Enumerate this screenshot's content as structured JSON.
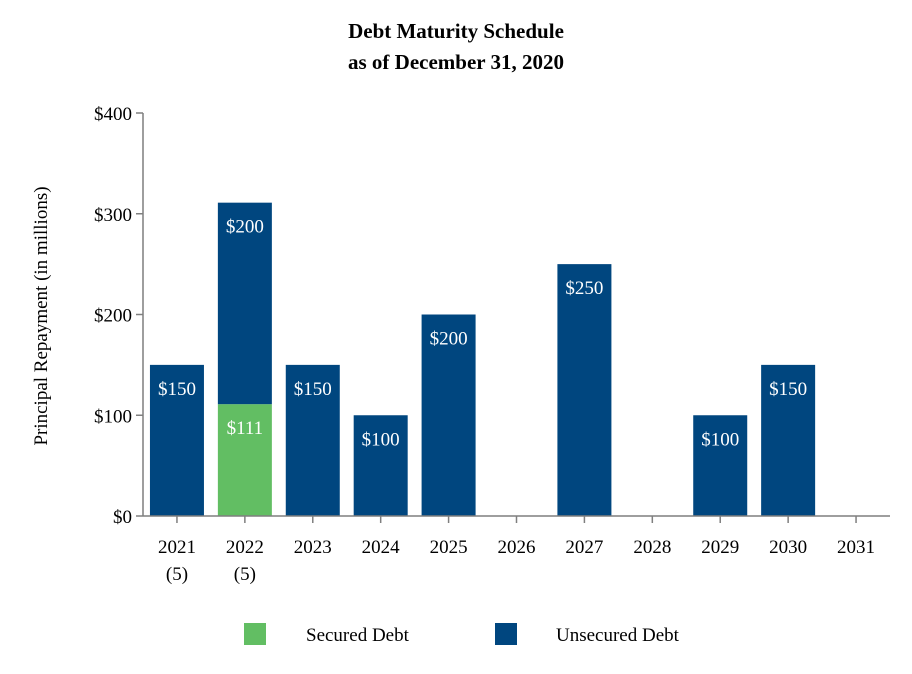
{
  "chart_data": {
    "type": "bar",
    "stacked": true,
    "title": "Debt Maturity Schedule",
    "subtitle": "as of December 31, 2020",
    "ylabel": "Principal Repayment (in millions)",
    "ylim": [
      0,
      400
    ],
    "yticks": [
      0,
      100,
      200,
      300,
      400
    ],
    "ytick_labels": [
      "$0",
      "$100",
      "$200",
      "$300",
      "$400"
    ],
    "categories": [
      "2021",
      "2022",
      "2023",
      "2024",
      "2025",
      "2026",
      "2027",
      "2028",
      "2029",
      "2030",
      "2031"
    ],
    "category_notes": [
      "(5)",
      "(5)",
      "",
      "",
      "",
      "",
      "",
      "",
      "",
      "",
      ""
    ],
    "series": [
      {
        "name": "Secured Debt",
        "color": "#62BE63",
        "values": [
          0,
          111,
          0,
          0,
          0,
          0,
          0,
          0,
          0,
          0,
          0
        ],
        "labels": [
          "",
          "$111",
          "",
          "",
          "",
          "",
          "",
          "",
          "",
          "",
          ""
        ]
      },
      {
        "name": "Unsecured Debt",
        "color": "#00467F",
        "values": [
          150,
          200,
          150,
          100,
          200,
          0,
          250,
          0,
          100,
          150,
          0
        ],
        "labels": [
          "$150",
          "$200",
          "$150",
          "$100",
          "$200",
          "",
          "$250",
          "",
          "$100",
          "$150",
          ""
        ]
      }
    ],
    "legend_position": "bottom",
    "grid": false
  }
}
